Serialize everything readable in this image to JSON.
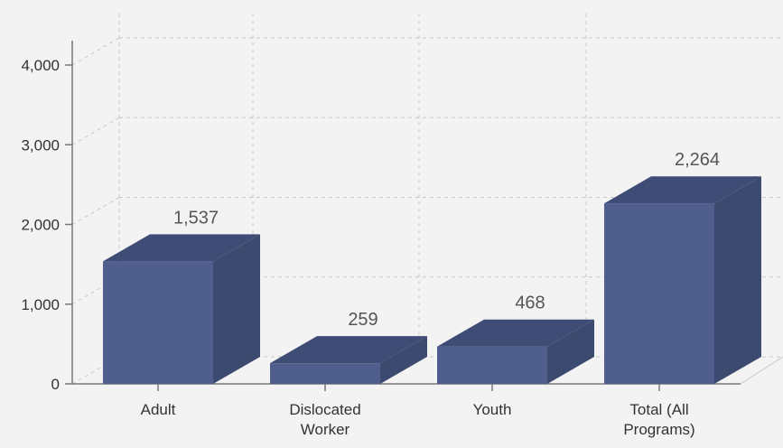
{
  "chart_data": {
    "type": "bar",
    "categories": [
      [
        "Adult"
      ],
      [
        "Dislocated",
        "Worker"
      ],
      [
        "Youth"
      ],
      [
        "Total (All",
        "Programs)"
      ]
    ],
    "values": [
      1537,
      259,
      468,
      2264
    ],
    "value_labels": [
      "1,537",
      "259",
      "468",
      "2,264"
    ],
    "y_ticks": [
      0,
      1000,
      2000,
      3000,
      4000
    ],
    "y_tick_labels": [
      "0",
      "1,000",
      "2,000",
      "3,000",
      "4,000"
    ],
    "ylim": [
      0,
      4000
    ],
    "grid": true,
    "style": "3d",
    "colors": {
      "bar_front": "#4f5e8c",
      "bar_top": "#3f4c76",
      "bar_side": "#3d4a6f",
      "axis": "#777777",
      "grid": "#c8c8c8",
      "background": "#f3f3f4"
    }
  }
}
